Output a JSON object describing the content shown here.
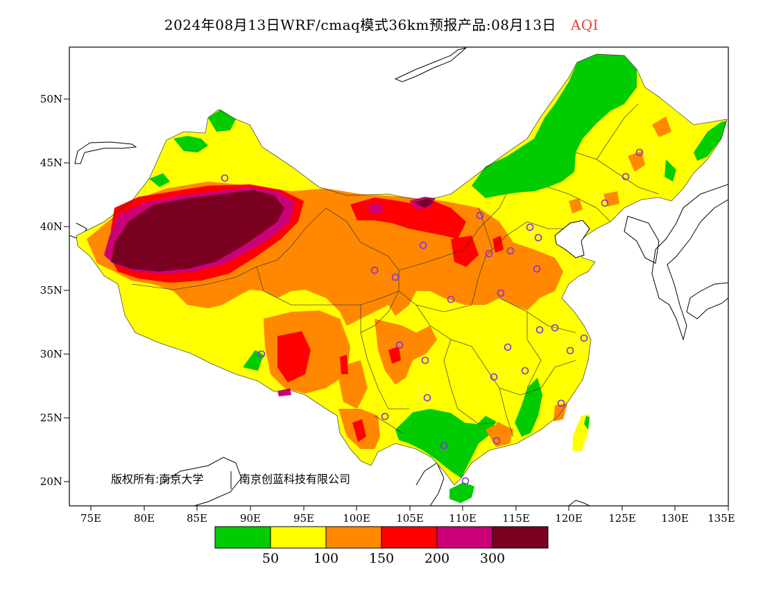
{
  "title": {
    "main": "2024年08月13日WRF/cmaq模式36km预报产品:08月13日",
    "variable": "AQI"
  },
  "map": {
    "lat_labels": [
      "50N",
      "45N",
      "40N",
      "35N",
      "30N",
      "25N",
      "20N"
    ],
    "lon_labels": [
      "75E",
      "80E",
      "85E",
      "90E",
      "95E",
      "100E",
      "105E",
      "110E",
      "115E",
      "120E",
      "125E",
      "130E",
      "135E"
    ],
    "extent": {
      "lon": [
        73,
        135
      ],
      "lat": [
        18,
        54
      ]
    },
    "copyright_left": "版权所有:南京大学",
    "copyright_right": "南京创蓝科技有限公司",
    "station_marker": "small purple circle"
  },
  "legend": {
    "colors": [
      "#00cc00",
      "#ffff00",
      "#ff8800",
      "#ff0000",
      "#cc0077",
      "#7a0022"
    ],
    "labels": [
      "50",
      "100",
      "150",
      "200",
      "300"
    ]
  },
  "colors": {
    "good": "#00cc00",
    "moderate": "#ffff00",
    "unhealthy_sensitive": "#ff8800",
    "unhealthy": "#ff0000",
    "very_unhealthy": "#cc0077",
    "hazardous": "#7a0022",
    "station": "#8a2be2"
  }
}
